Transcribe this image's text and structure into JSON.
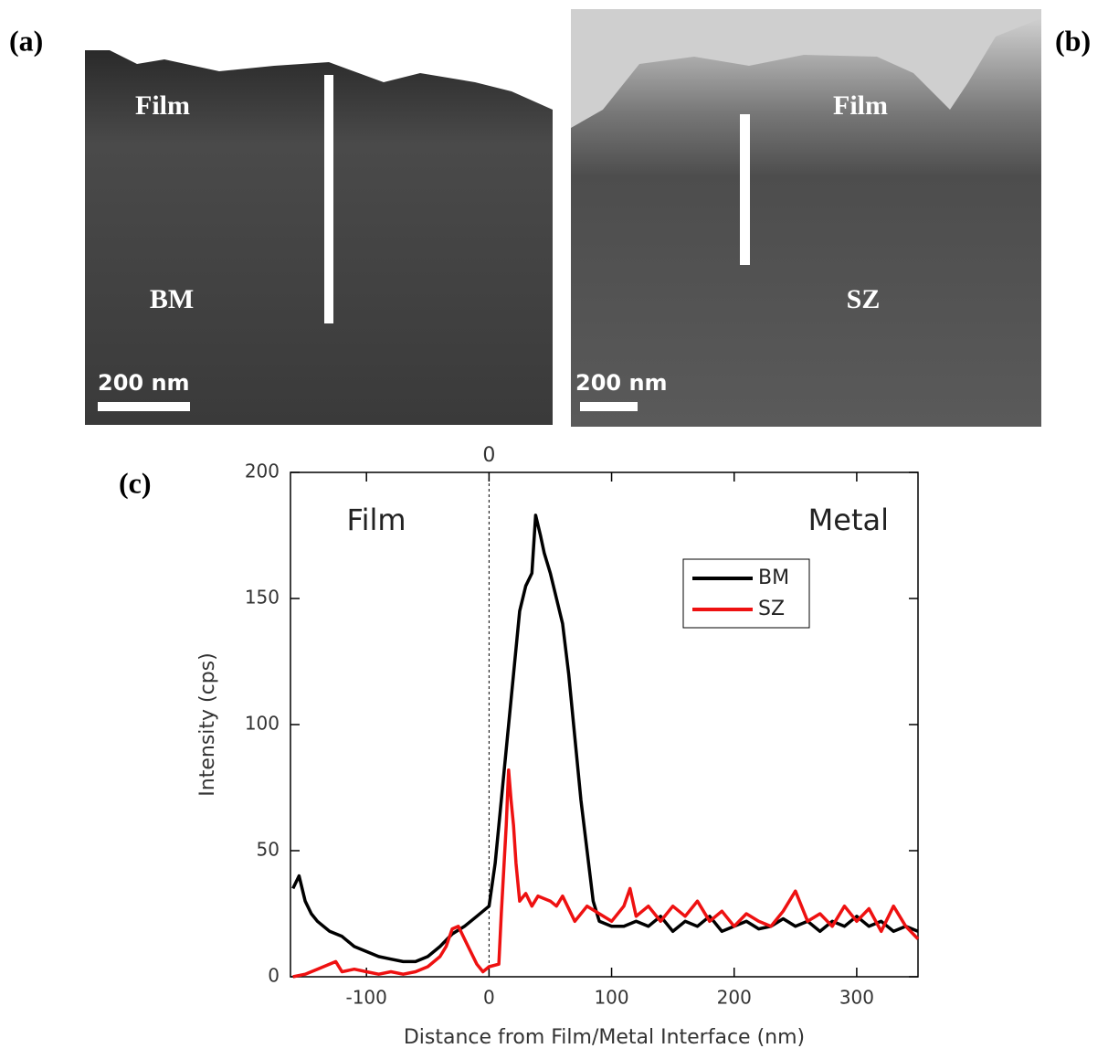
{
  "panels": [
    {
      "label": "(a)",
      "top_text": "Film",
      "bottom_text": "BM",
      "scale_bar": "200 nm"
    },
    {
      "label": "(b)",
      "top_text": "Film",
      "bottom_text": "SZ",
      "scale_bar": "200 nm"
    }
  ],
  "chart_data": {
    "type": "line",
    "panel_label": "(c)",
    "x_label": "Distance from Film/Metal Interface (nm)",
    "y_label": "Intensity (cps)",
    "annotations": [
      "Film",
      "Metal"
    ],
    "xlim": [
      -162,
      350
    ],
    "ylim": [
      0,
      200
    ],
    "xticks": [
      -100,
      0,
      100,
      200,
      300
    ],
    "yticks": [
      0,
      50,
      100,
      150,
      200
    ],
    "x2ticks": [
      0
    ],
    "legend": "upper right",
    "series": [
      {
        "name": "BM",
        "color": "#000000",
        "x": [
          -160,
          -155,
          -150,
          -145,
          -140,
          -130,
          -120,
          -110,
          -100,
          -90,
          -80,
          -70,
          -60,
          -50,
          -40,
          -30,
          -20,
          -10,
          0,
          5,
          10,
          15,
          20,
          25,
          30,
          35,
          38,
          42,
          45,
          50,
          55,
          60,
          65,
          70,
          75,
          80,
          85,
          90,
          100,
          110,
          120,
          130,
          140,
          150,
          160,
          170,
          180,
          190,
          200,
          210,
          220,
          230,
          240,
          250,
          260,
          270,
          280,
          290,
          300,
          310,
          320,
          330,
          340,
          350
        ],
        "values": [
          35,
          40,
          30,
          25,
          22,
          18,
          16,
          12,
          10,
          8,
          7,
          6,
          6,
          8,
          12,
          17,
          20,
          24,
          28,
          45,
          70,
          95,
          120,
          145,
          155,
          160,
          183,
          175,
          168,
          160,
          150,
          140,
          120,
          95,
          70,
          50,
          30,
          22,
          20,
          20,
          22,
          20,
          24,
          18,
          22,
          20,
          24,
          18,
          20,
          22,
          19,
          20,
          23,
          20,
          22,
          18,
          22,
          20,
          24,
          20,
          22,
          18,
          20,
          18
        ]
      },
      {
        "name": "SZ",
        "color": "#ee1111",
        "x": [
          -160,
          -150,
          -140,
          -125,
          -120,
          -110,
          -100,
          -90,
          -80,
          -70,
          -60,
          -50,
          -40,
          -35,
          -30,
          -25,
          -20,
          -15,
          -10,
          -5,
          0,
          8,
          10,
          14,
          16,
          18,
          20,
          22,
          25,
          30,
          35,
          40,
          50,
          55,
          60,
          70,
          80,
          90,
          100,
          110,
          115,
          120,
          130,
          140,
          150,
          160,
          170,
          180,
          190,
          200,
          210,
          220,
          230,
          240,
          250,
          260,
          270,
          280,
          290,
          300,
          310,
          320,
          330,
          340,
          350
        ],
        "values": [
          0,
          1,
          3,
          6,
          2,
          3,
          2,
          1,
          2,
          1,
          2,
          4,
          8,
          12,
          19,
          20,
          15,
          10,
          5,
          2,
          4,
          5,
          25,
          60,
          82,
          70,
          60,
          45,
          30,
          33,
          28,
          32,
          30,
          28,
          32,
          22,
          28,
          25,
          22,
          28,
          35,
          24,
          28,
          22,
          28,
          24,
          30,
          22,
          26,
          20,
          25,
          22,
          20,
          26,
          34,
          22,
          25,
          20,
          28,
          22,
          27,
          18,
          28,
          20,
          15
        ]
      }
    ]
  }
}
